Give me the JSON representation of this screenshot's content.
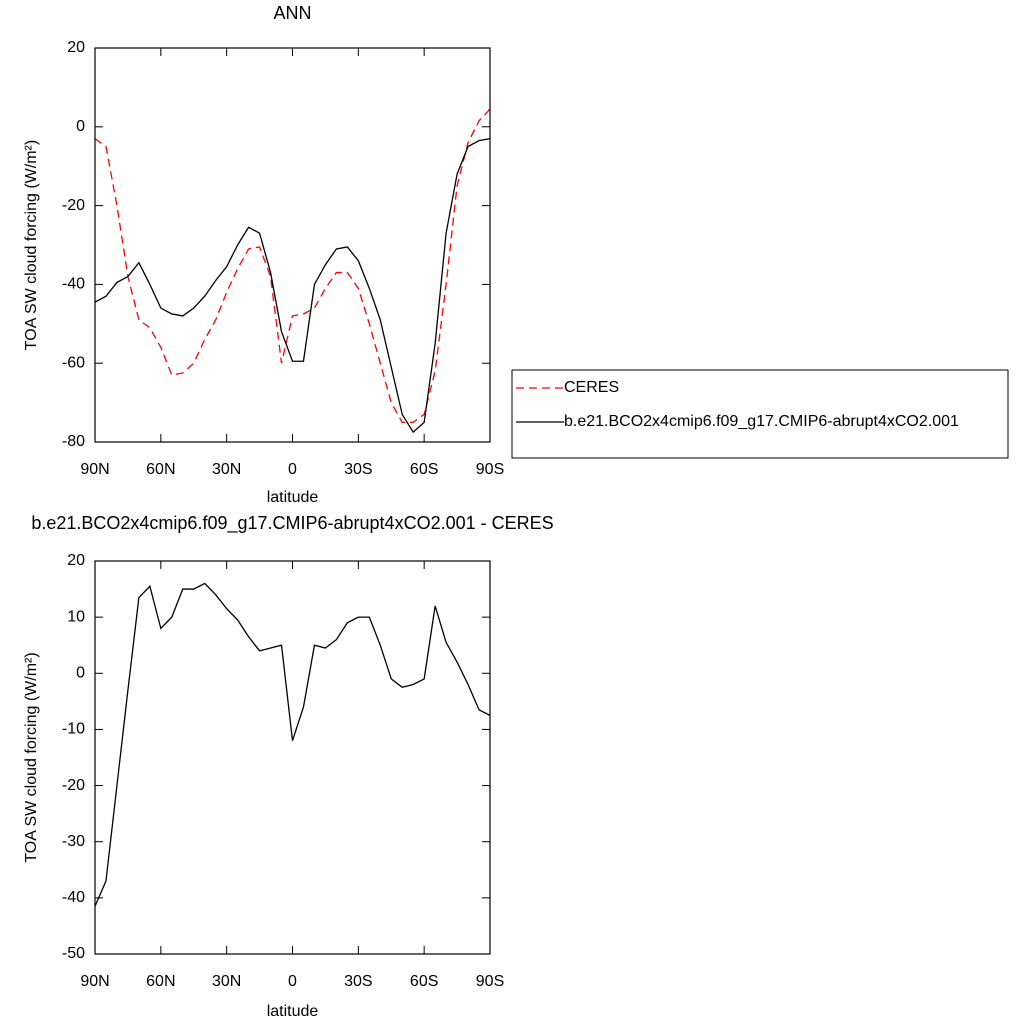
{
  "chart_data": [
    {
      "type": "line",
      "title": "ANN",
      "xlabel": "latitude",
      "ylabel": "TOA SW cloud forcing (W/m²)",
      "x": [
        90,
        85,
        80,
        75,
        70,
        65,
        60,
        55,
        50,
        45,
        40,
        35,
        30,
        25,
        20,
        15,
        10,
        5,
        0,
        -5,
        -10,
        -15,
        -20,
        -25,
        -30,
        -35,
        -40,
        -45,
        -50,
        -55,
        -60,
        -65,
        -70,
        -75,
        -80,
        -85,
        -90
      ],
      "series": [
        {
          "name": "CERES",
          "color": "#ff0000",
          "dashed": true,
          "values": [
            -3,
            -5,
            -20,
            -38,
            -49,
            -51,
            -56,
            -63,
            -62.5,
            -60,
            -54,
            -49,
            -42,
            -36,
            -31,
            -30.5,
            -38,
            -60,
            -48,
            -47.5,
            -46,
            -41,
            -37,
            -37,
            -41,
            -50,
            -60,
            -70,
            -75,
            -75,
            -73,
            -62,
            -40,
            -15,
            -4,
            1.5,
            4.5
          ]
        },
        {
          "name": "b.e21.BCO2x4cmip6.f09_g17.CMIP6-abrupt4xCO2.001",
          "color": "#000000",
          "dashed": false,
          "values": [
            -44.5,
            -43,
            -39.5,
            -38,
            -34.5,
            -40,
            -46,
            -47.5,
            -48,
            -46,
            -43,
            -39,
            -35.5,
            -30,
            -25.5,
            -27,
            -37,
            -52,
            -59.5,
            -59.5,
            -40,
            -35,
            -31,
            -30.5,
            -34,
            -41,
            -49,
            -61,
            -73,
            -77.5,
            -75,
            -55,
            -27,
            -12,
            -5,
            -3.5,
            -3
          ]
        }
      ],
      "xlim": [
        90,
        -90
      ],
      "xticks": [
        {
          "value": 90,
          "label": "90N"
        },
        {
          "value": 60,
          "label": "60N"
        },
        {
          "value": 30,
          "label": "30N"
        },
        0,
        {
          "value": -30,
          "label": "30S"
        },
        {
          "value": -60,
          "label": "60S"
        },
        {
          "value": -90,
          "label": "90S"
        }
      ],
      "ylim": [
        -80,
        20
      ],
      "yticks": [
        -80,
        -60,
        -40,
        -20,
        0,
        20
      ],
      "legend": true
    },
    {
      "type": "line",
      "title": "b.e21.BCO2x4cmip6.f09_g17.CMIP6-abrupt4xCO2.001 - CERES",
      "xlabel": "latitude",
      "ylabel": "TOA SW cloud forcing (W/m²)",
      "x": [
        90,
        85,
        80,
        75,
        70,
        65,
        60,
        55,
        50,
        45,
        40,
        35,
        30,
        25,
        20,
        15,
        10,
        5,
        0,
        -5,
        -10,
        -15,
        -20,
        -25,
        -30,
        -35,
        -40,
        -45,
        -50,
        -55,
        -60,
        -65,
        -70,
        -75,
        -80,
        -85,
        -90
      ],
      "series": [
        {
          "color": "#000000",
          "dashed": false,
          "values": [
            -41.5,
            -37,
            -20,
            -3,
            13.5,
            15.5,
            8,
            10,
            15,
            15,
            16,
            14,
            11.5,
            9.5,
            6.5,
            4,
            4.5,
            5,
            -12,
            -6,
            5,
            4.5,
            6,
            9,
            10,
            10,
            5,
            -1,
            -2.5,
            -2,
            -1,
            12,
            5.5,
            2,
            -2,
            -6.5,
            -7.5
          ]
        }
      ],
      "xlim": [
        90,
        -90
      ],
      "xticks": [
        {
          "value": 90,
          "label": "90N"
        },
        {
          "value": 60,
          "label": "60N"
        },
        {
          "value": 30,
          "label": "30N"
        },
        0,
        {
          "value": -30,
          "label": "30S"
        },
        {
          "value": -60,
          "label": "60S"
        },
        {
          "value": -90,
          "label": "90S"
        }
      ],
      "ylim": [
        -50,
        20
      ],
      "yticks": [
        -50,
        -40,
        -30,
        -20,
        -10,
        0,
        10,
        20
      ],
      "legend": false
    }
  ]
}
